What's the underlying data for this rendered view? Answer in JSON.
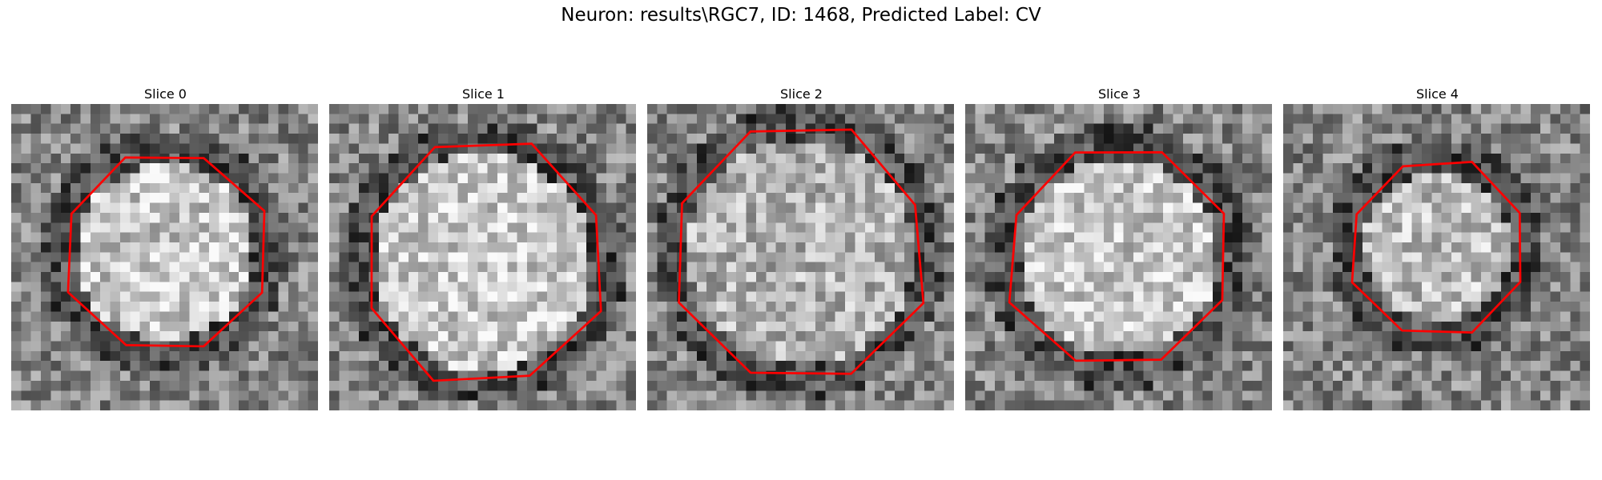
{
  "figure": {
    "title": "Neuron: results\\RGC7, ID: 1468, Predicted Label: CV"
  },
  "colors": {
    "contour": "#ff0000",
    "background": "#ffffff"
  },
  "slices": [
    {
      "title": "Slice 0",
      "seed": 11,
      "center": [
        15.5,
        15.0
      ],
      "radius": 10.5,
      "brightness": 0.78
    },
    {
      "title": "Slice 1",
      "seed": 23,
      "center": [
        15.5,
        16.0
      ],
      "radius": 12.5,
      "brightness": 0.8
    },
    {
      "title": "Slice 2",
      "seed": 37,
      "center": [
        15.5,
        15.0
      ],
      "radius": 13.0,
      "brightness": 0.7
    },
    {
      "title": "Slice 3",
      "seed": 41,
      "center": [
        15.5,
        15.5
      ],
      "radius": 11.5,
      "brightness": 0.78
    },
    {
      "title": "Slice 4",
      "seed": 59,
      "center": [
        15.5,
        14.5
      ],
      "radius": 9.0,
      "brightness": 0.74
    }
  ]
}
